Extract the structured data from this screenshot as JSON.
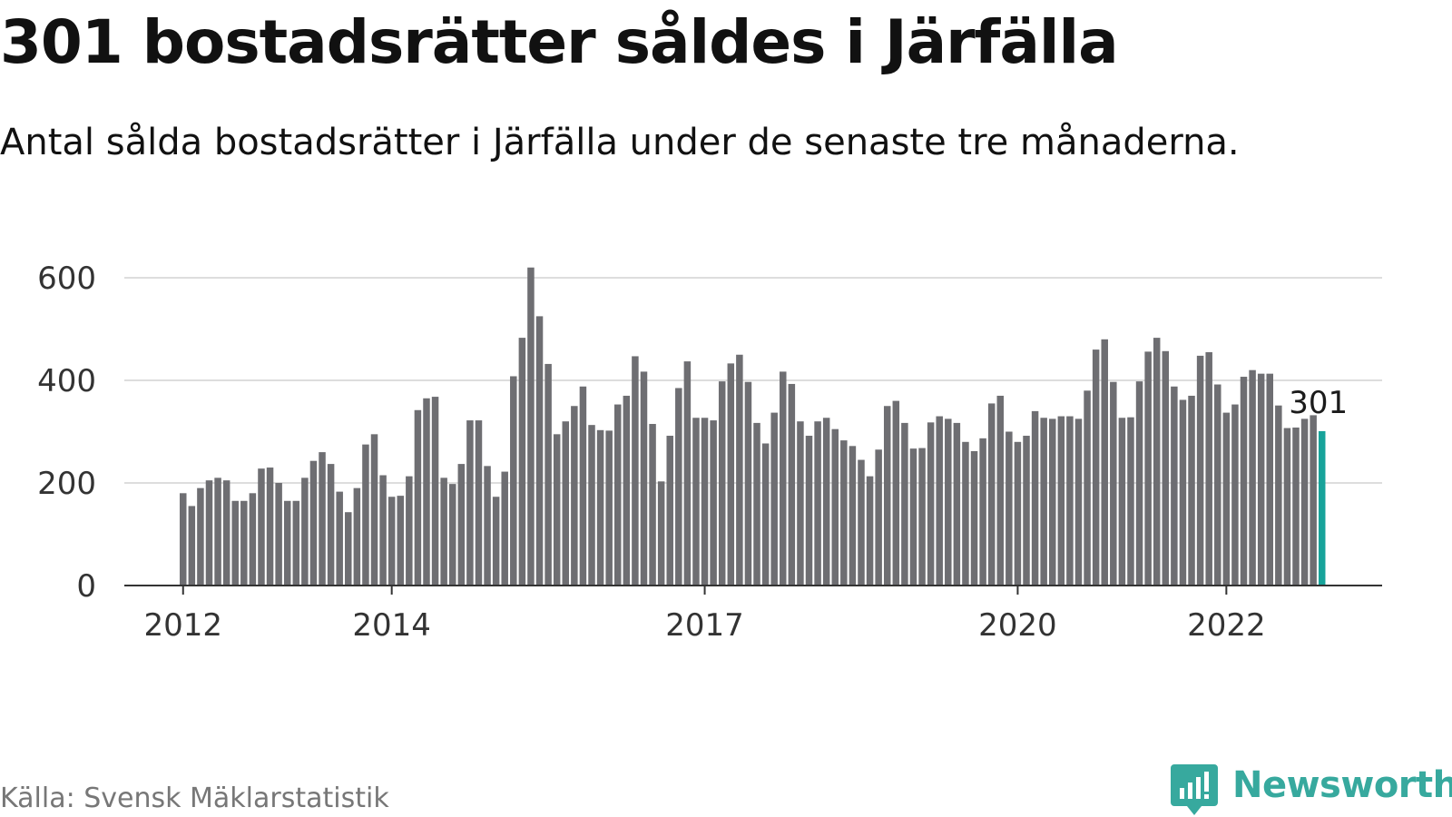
{
  "title": "301 bostadsrätter såldes i Järfälla",
  "subtitle": "Antal sålda bostadsrätter i Järfälla under de senaste tre månaderna.",
  "source": "Källa: Svensk Mäklarstatistik",
  "brand": {
    "name": "Newsworthy",
    "icon": "newsworthy-logo-icon",
    "color": "#37a99e"
  },
  "colors": {
    "bar": "#6e6e72",
    "highlight": "#17a39a",
    "grid": "#dddddd",
    "axis": "#333333"
  },
  "chart_data": {
    "type": "bar",
    "title": "301 bostadsrätter såldes i Järfälla",
    "xlabel": "",
    "ylabel": "",
    "ylim": [
      0,
      600
    ],
    "yticks": [
      0,
      200,
      400,
      600
    ],
    "xticks": [
      {
        "label": "2012",
        "index": 0
      },
      {
        "label": "2014",
        "index": 24
      },
      {
        "label": "2017",
        "index": 60
      },
      {
        "label": "2020",
        "index": 96
      },
      {
        "label": "2022",
        "index": 120
      }
    ],
    "grid": true,
    "legend": "none",
    "start_period": "2012-01",
    "highlight_label": "301",
    "values": [
      180,
      155,
      190,
      205,
      210,
      205,
      165,
      165,
      180,
      228,
      230,
      200,
      165,
      165,
      210,
      243,
      260,
      237,
      183,
      143,
      190,
      275,
      295,
      215,
      173,
      175,
      213,
      342,
      365,
      368,
      210,
      198,
      237,
      322,
      322,
      233,
      173,
      222,
      408,
      483,
      620,
      525,
      432,
      295,
      320,
      350,
      388,
      313,
      303,
      302,
      353,
      370,
      447,
      417,
      315,
      203,
      292,
      385,
      437,
      327,
      327,
      322,
      398,
      433,
      450,
      397,
      317,
      277,
      337,
      417,
      393,
      320,
      292,
      320,
      327,
      305,
      283,
      272,
      245,
      213,
      265,
      350,
      360,
      317,
      267,
      268,
      318,
      330,
      325,
      317,
      280,
      262,
      287,
      355,
      370,
      300,
      280,
      292,
      340,
      327,
      325,
      330,
      330,
      325,
      380,
      460,
      480,
      397,
      327,
      328,
      398,
      456,
      483,
      457,
      388,
      362,
      370,
      448,
      455,
      392,
      337,
      353,
      407,
      420,
      413,
      413,
      351,
      307,
      308,
      325,
      332,
      301
    ]
  }
}
